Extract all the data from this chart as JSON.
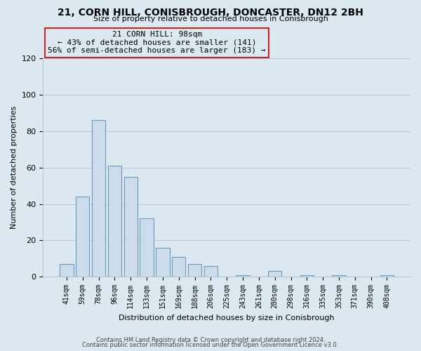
{
  "title1": "21, CORN HILL, CONISBROUGH, DONCASTER, DN12 2BH",
  "title2": "Size of property relative to detached houses in Conisbrough",
  "xlabel": "Distribution of detached houses by size in Conisbrough",
  "ylabel": "Number of detached properties",
  "categories": [
    "41sqm",
    "59sqm",
    "78sqm",
    "96sqm",
    "114sqm",
    "133sqm",
    "151sqm",
    "169sqm",
    "188sqm",
    "206sqm",
    "225sqm",
    "243sqm",
    "261sqm",
    "280sqm",
    "298sqm",
    "316sqm",
    "335sqm",
    "353sqm",
    "371sqm",
    "390sqm",
    "408sqm"
  ],
  "values": [
    7,
    44,
    86,
    61,
    55,
    32,
    16,
    11,
    7,
    6,
    0,
    1,
    0,
    3,
    0,
    1,
    0,
    1,
    0,
    0,
    1
  ],
  "bar_color": "#ccdcec",
  "bar_edge_color": "#6699bb",
  "annotation_line1": "21 CORN HILL: 98sqm",
  "annotation_line2": "← 43% of detached houses are smaller (141)",
  "annotation_line3": "56% of semi-detached houses are larger (183) →",
  "annotation_box_edge_color": "#cc2222",
  "ylim": [
    0,
    120
  ],
  "yticks": [
    0,
    20,
    40,
    60,
    80,
    100,
    120
  ],
  "footer1": "Contains HM Land Registry data © Crown copyright and database right 2024.",
  "footer2": "Contains public sector information licensed under the Open Government Licence v3.0.",
  "background_color": "#dce8f0",
  "plot_background": "#dce8f0",
  "grid_color": "#b8c8d8",
  "title1_fontsize": 10,
  "title2_fontsize": 8,
  "ylabel_fontsize": 8,
  "xlabel_fontsize": 8,
  "tick_fontsize": 7,
  "footer_fontsize": 6
}
